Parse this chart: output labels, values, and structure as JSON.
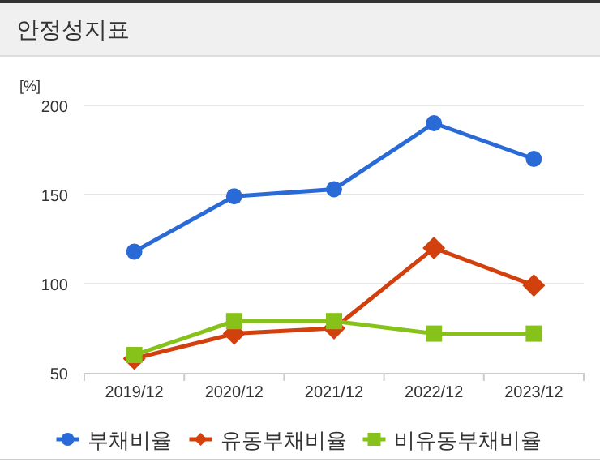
{
  "chart_data": {
    "type": "line",
    "title": "안정성지표",
    "ylabel": "[%]",
    "categories": [
      "2019/12",
      "2020/12",
      "2021/12",
      "2022/12",
      "2023/12"
    ],
    "series": [
      {
        "name": "부채비율",
        "color": "#2a6ad6",
        "marker": "circle",
        "values": [
          118,
          149,
          153,
          190,
          170
        ]
      },
      {
        "name": "유동부채비율",
        "color": "#d2400e",
        "marker": "diamond",
        "values": [
          58,
          72,
          75,
          120,
          99
        ]
      },
      {
        "name": "비유동부채비율",
        "color": "#86c21a",
        "marker": "square",
        "values": [
          60,
          79,
          79,
          72,
          72
        ]
      }
    ],
    "ylim": [
      50,
      200
    ],
    "yticks": [
      50,
      100,
      150,
      200
    ],
    "grid": "y",
    "legend": "bottom",
    "line_style": "solid"
  }
}
